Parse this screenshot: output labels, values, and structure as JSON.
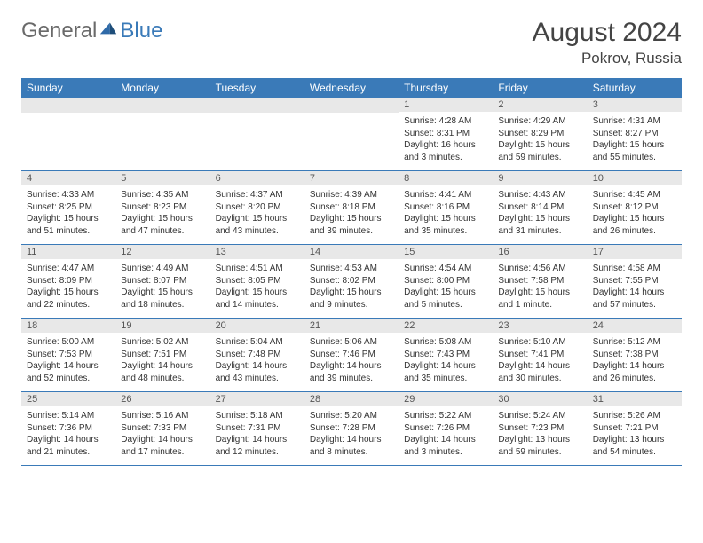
{
  "brand": {
    "general": "General",
    "blue": "Blue"
  },
  "title": "August 2024",
  "location": "Pokrov, Russia",
  "day_headers": [
    "Sunday",
    "Monday",
    "Tuesday",
    "Wednesday",
    "Thursday",
    "Friday",
    "Saturday"
  ],
  "colors": {
    "header_bg": "#3a7ab8",
    "header_text": "#ffffff",
    "daynum_bg": "#e8e8e8",
    "border": "#3a7ab8",
    "text": "#333333",
    "logo_gray": "#6a6a6a",
    "logo_blue": "#3a7ab8"
  },
  "typography": {
    "title_fontsize": 30,
    "location_fontsize": 17,
    "header_fontsize": 12,
    "cell_fontsize": 10
  },
  "weeks": [
    [
      {
        "n": "",
        "sunrise": "",
        "sunset": "",
        "daylight": ""
      },
      {
        "n": "",
        "sunrise": "",
        "sunset": "",
        "daylight": ""
      },
      {
        "n": "",
        "sunrise": "",
        "sunset": "",
        "daylight": ""
      },
      {
        "n": "",
        "sunrise": "",
        "sunset": "",
        "daylight": ""
      },
      {
        "n": "1",
        "sunrise": "Sunrise: 4:28 AM",
        "sunset": "Sunset: 8:31 PM",
        "daylight": "Daylight: 16 hours and 3 minutes."
      },
      {
        "n": "2",
        "sunrise": "Sunrise: 4:29 AM",
        "sunset": "Sunset: 8:29 PM",
        "daylight": "Daylight: 15 hours and 59 minutes."
      },
      {
        "n": "3",
        "sunrise": "Sunrise: 4:31 AM",
        "sunset": "Sunset: 8:27 PM",
        "daylight": "Daylight: 15 hours and 55 minutes."
      }
    ],
    [
      {
        "n": "4",
        "sunrise": "Sunrise: 4:33 AM",
        "sunset": "Sunset: 8:25 PM",
        "daylight": "Daylight: 15 hours and 51 minutes."
      },
      {
        "n": "5",
        "sunrise": "Sunrise: 4:35 AM",
        "sunset": "Sunset: 8:23 PM",
        "daylight": "Daylight: 15 hours and 47 minutes."
      },
      {
        "n": "6",
        "sunrise": "Sunrise: 4:37 AM",
        "sunset": "Sunset: 8:20 PM",
        "daylight": "Daylight: 15 hours and 43 minutes."
      },
      {
        "n": "7",
        "sunrise": "Sunrise: 4:39 AM",
        "sunset": "Sunset: 8:18 PM",
        "daylight": "Daylight: 15 hours and 39 minutes."
      },
      {
        "n": "8",
        "sunrise": "Sunrise: 4:41 AM",
        "sunset": "Sunset: 8:16 PM",
        "daylight": "Daylight: 15 hours and 35 minutes."
      },
      {
        "n": "9",
        "sunrise": "Sunrise: 4:43 AM",
        "sunset": "Sunset: 8:14 PM",
        "daylight": "Daylight: 15 hours and 31 minutes."
      },
      {
        "n": "10",
        "sunrise": "Sunrise: 4:45 AM",
        "sunset": "Sunset: 8:12 PM",
        "daylight": "Daylight: 15 hours and 26 minutes."
      }
    ],
    [
      {
        "n": "11",
        "sunrise": "Sunrise: 4:47 AM",
        "sunset": "Sunset: 8:09 PM",
        "daylight": "Daylight: 15 hours and 22 minutes."
      },
      {
        "n": "12",
        "sunrise": "Sunrise: 4:49 AM",
        "sunset": "Sunset: 8:07 PM",
        "daylight": "Daylight: 15 hours and 18 minutes."
      },
      {
        "n": "13",
        "sunrise": "Sunrise: 4:51 AM",
        "sunset": "Sunset: 8:05 PM",
        "daylight": "Daylight: 15 hours and 14 minutes."
      },
      {
        "n": "14",
        "sunrise": "Sunrise: 4:53 AM",
        "sunset": "Sunset: 8:02 PM",
        "daylight": "Daylight: 15 hours and 9 minutes."
      },
      {
        "n": "15",
        "sunrise": "Sunrise: 4:54 AM",
        "sunset": "Sunset: 8:00 PM",
        "daylight": "Daylight: 15 hours and 5 minutes."
      },
      {
        "n": "16",
        "sunrise": "Sunrise: 4:56 AM",
        "sunset": "Sunset: 7:58 PM",
        "daylight": "Daylight: 15 hours and 1 minute."
      },
      {
        "n": "17",
        "sunrise": "Sunrise: 4:58 AM",
        "sunset": "Sunset: 7:55 PM",
        "daylight": "Daylight: 14 hours and 57 minutes."
      }
    ],
    [
      {
        "n": "18",
        "sunrise": "Sunrise: 5:00 AM",
        "sunset": "Sunset: 7:53 PM",
        "daylight": "Daylight: 14 hours and 52 minutes."
      },
      {
        "n": "19",
        "sunrise": "Sunrise: 5:02 AM",
        "sunset": "Sunset: 7:51 PM",
        "daylight": "Daylight: 14 hours and 48 minutes."
      },
      {
        "n": "20",
        "sunrise": "Sunrise: 5:04 AM",
        "sunset": "Sunset: 7:48 PM",
        "daylight": "Daylight: 14 hours and 43 minutes."
      },
      {
        "n": "21",
        "sunrise": "Sunrise: 5:06 AM",
        "sunset": "Sunset: 7:46 PM",
        "daylight": "Daylight: 14 hours and 39 minutes."
      },
      {
        "n": "22",
        "sunrise": "Sunrise: 5:08 AM",
        "sunset": "Sunset: 7:43 PM",
        "daylight": "Daylight: 14 hours and 35 minutes."
      },
      {
        "n": "23",
        "sunrise": "Sunrise: 5:10 AM",
        "sunset": "Sunset: 7:41 PM",
        "daylight": "Daylight: 14 hours and 30 minutes."
      },
      {
        "n": "24",
        "sunrise": "Sunrise: 5:12 AM",
        "sunset": "Sunset: 7:38 PM",
        "daylight": "Daylight: 14 hours and 26 minutes."
      }
    ],
    [
      {
        "n": "25",
        "sunrise": "Sunrise: 5:14 AM",
        "sunset": "Sunset: 7:36 PM",
        "daylight": "Daylight: 14 hours and 21 minutes."
      },
      {
        "n": "26",
        "sunrise": "Sunrise: 5:16 AM",
        "sunset": "Sunset: 7:33 PM",
        "daylight": "Daylight: 14 hours and 17 minutes."
      },
      {
        "n": "27",
        "sunrise": "Sunrise: 5:18 AM",
        "sunset": "Sunset: 7:31 PM",
        "daylight": "Daylight: 14 hours and 12 minutes."
      },
      {
        "n": "28",
        "sunrise": "Sunrise: 5:20 AM",
        "sunset": "Sunset: 7:28 PM",
        "daylight": "Daylight: 14 hours and 8 minutes."
      },
      {
        "n": "29",
        "sunrise": "Sunrise: 5:22 AM",
        "sunset": "Sunset: 7:26 PM",
        "daylight": "Daylight: 14 hours and 3 minutes."
      },
      {
        "n": "30",
        "sunrise": "Sunrise: 5:24 AM",
        "sunset": "Sunset: 7:23 PM",
        "daylight": "Daylight: 13 hours and 59 minutes."
      },
      {
        "n": "31",
        "sunrise": "Sunrise: 5:26 AM",
        "sunset": "Sunset: 7:21 PM",
        "daylight": "Daylight: 13 hours and 54 minutes."
      }
    ]
  ]
}
